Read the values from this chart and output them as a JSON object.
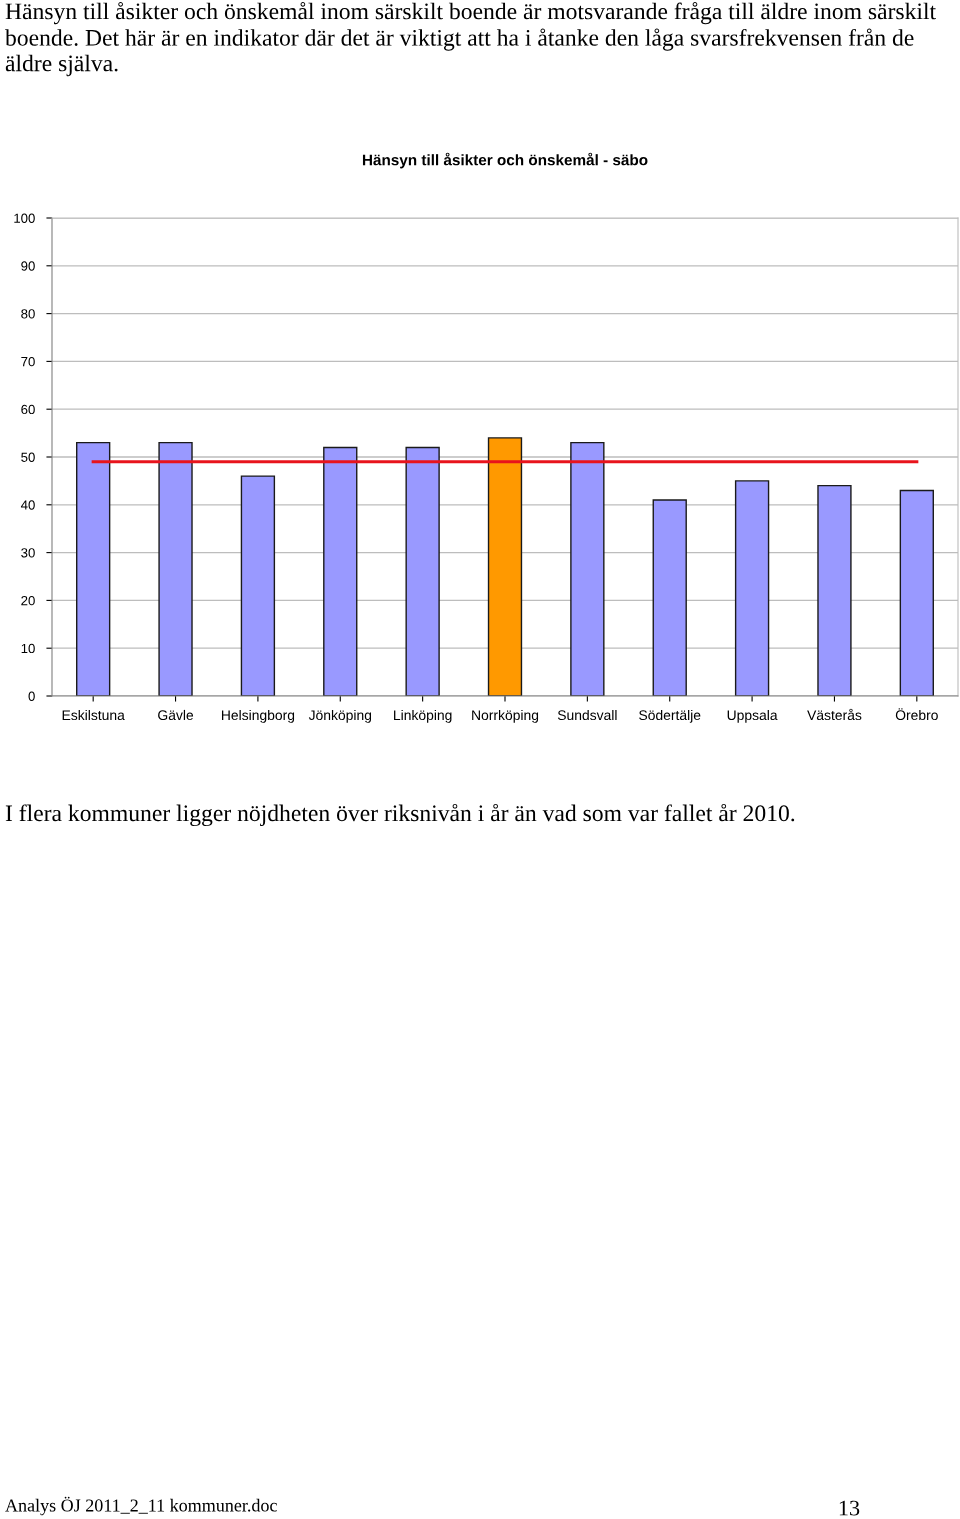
{
  "chart_data": {
    "type": "bar",
    "title": "Hänsyn till åsikter och önskemål - säbo",
    "categories": [
      "Eskilstuna",
      "Gävle",
      "Helsingborg",
      "Jönköping",
      "Linköping",
      "Norrköping",
      "Sundsvall",
      "Södertälje",
      "Uppsala",
      "Västerås",
      "Örebro"
    ],
    "series": [
      {
        "colors": [
          "#9999ff",
          "#9999ff",
          "#9999ff",
          "#9999ff",
          "#9999ff",
          "#ff9900",
          "#9999ff",
          "#9999ff",
          "#9999ff",
          "#9999ff",
          "#9999ff"
        ],
        "values": [
          53,
          53,
          46,
          52,
          52,
          54,
          53,
          41,
          45,
          44,
          43
        ]
      },
      {
        "type": "line",
        "color": "#e8141c",
        "values": [
          49,
          49,
          49,
          49,
          49,
          49,
          49,
          49,
          49,
          49,
          49
        ]
      }
    ],
    "ylim": [
      0,
      100
    ],
    "yticks": [
      0,
      10,
      20,
      30,
      40,
      50,
      60,
      70,
      80,
      90,
      100
    ],
    "grid": "y",
    "legend": false,
    "marker": "none",
    "annotations": [
      "Hänsyn till åsikter och önskemål inom särskilt boende är motsvarande fråga till äldre inom särskilt boende. Det här är en indikator där det är viktigt att ha i åtanke den låga svarsfrekvensen från de äldre själva.",
      "I flera kommuner ligger nöjdheten över riksnivån i år än vad som var fallet år 2010.",
      "Analys ÖJ 2011_2_11 kommuner.doc",
      "13"
    ]
  }
}
